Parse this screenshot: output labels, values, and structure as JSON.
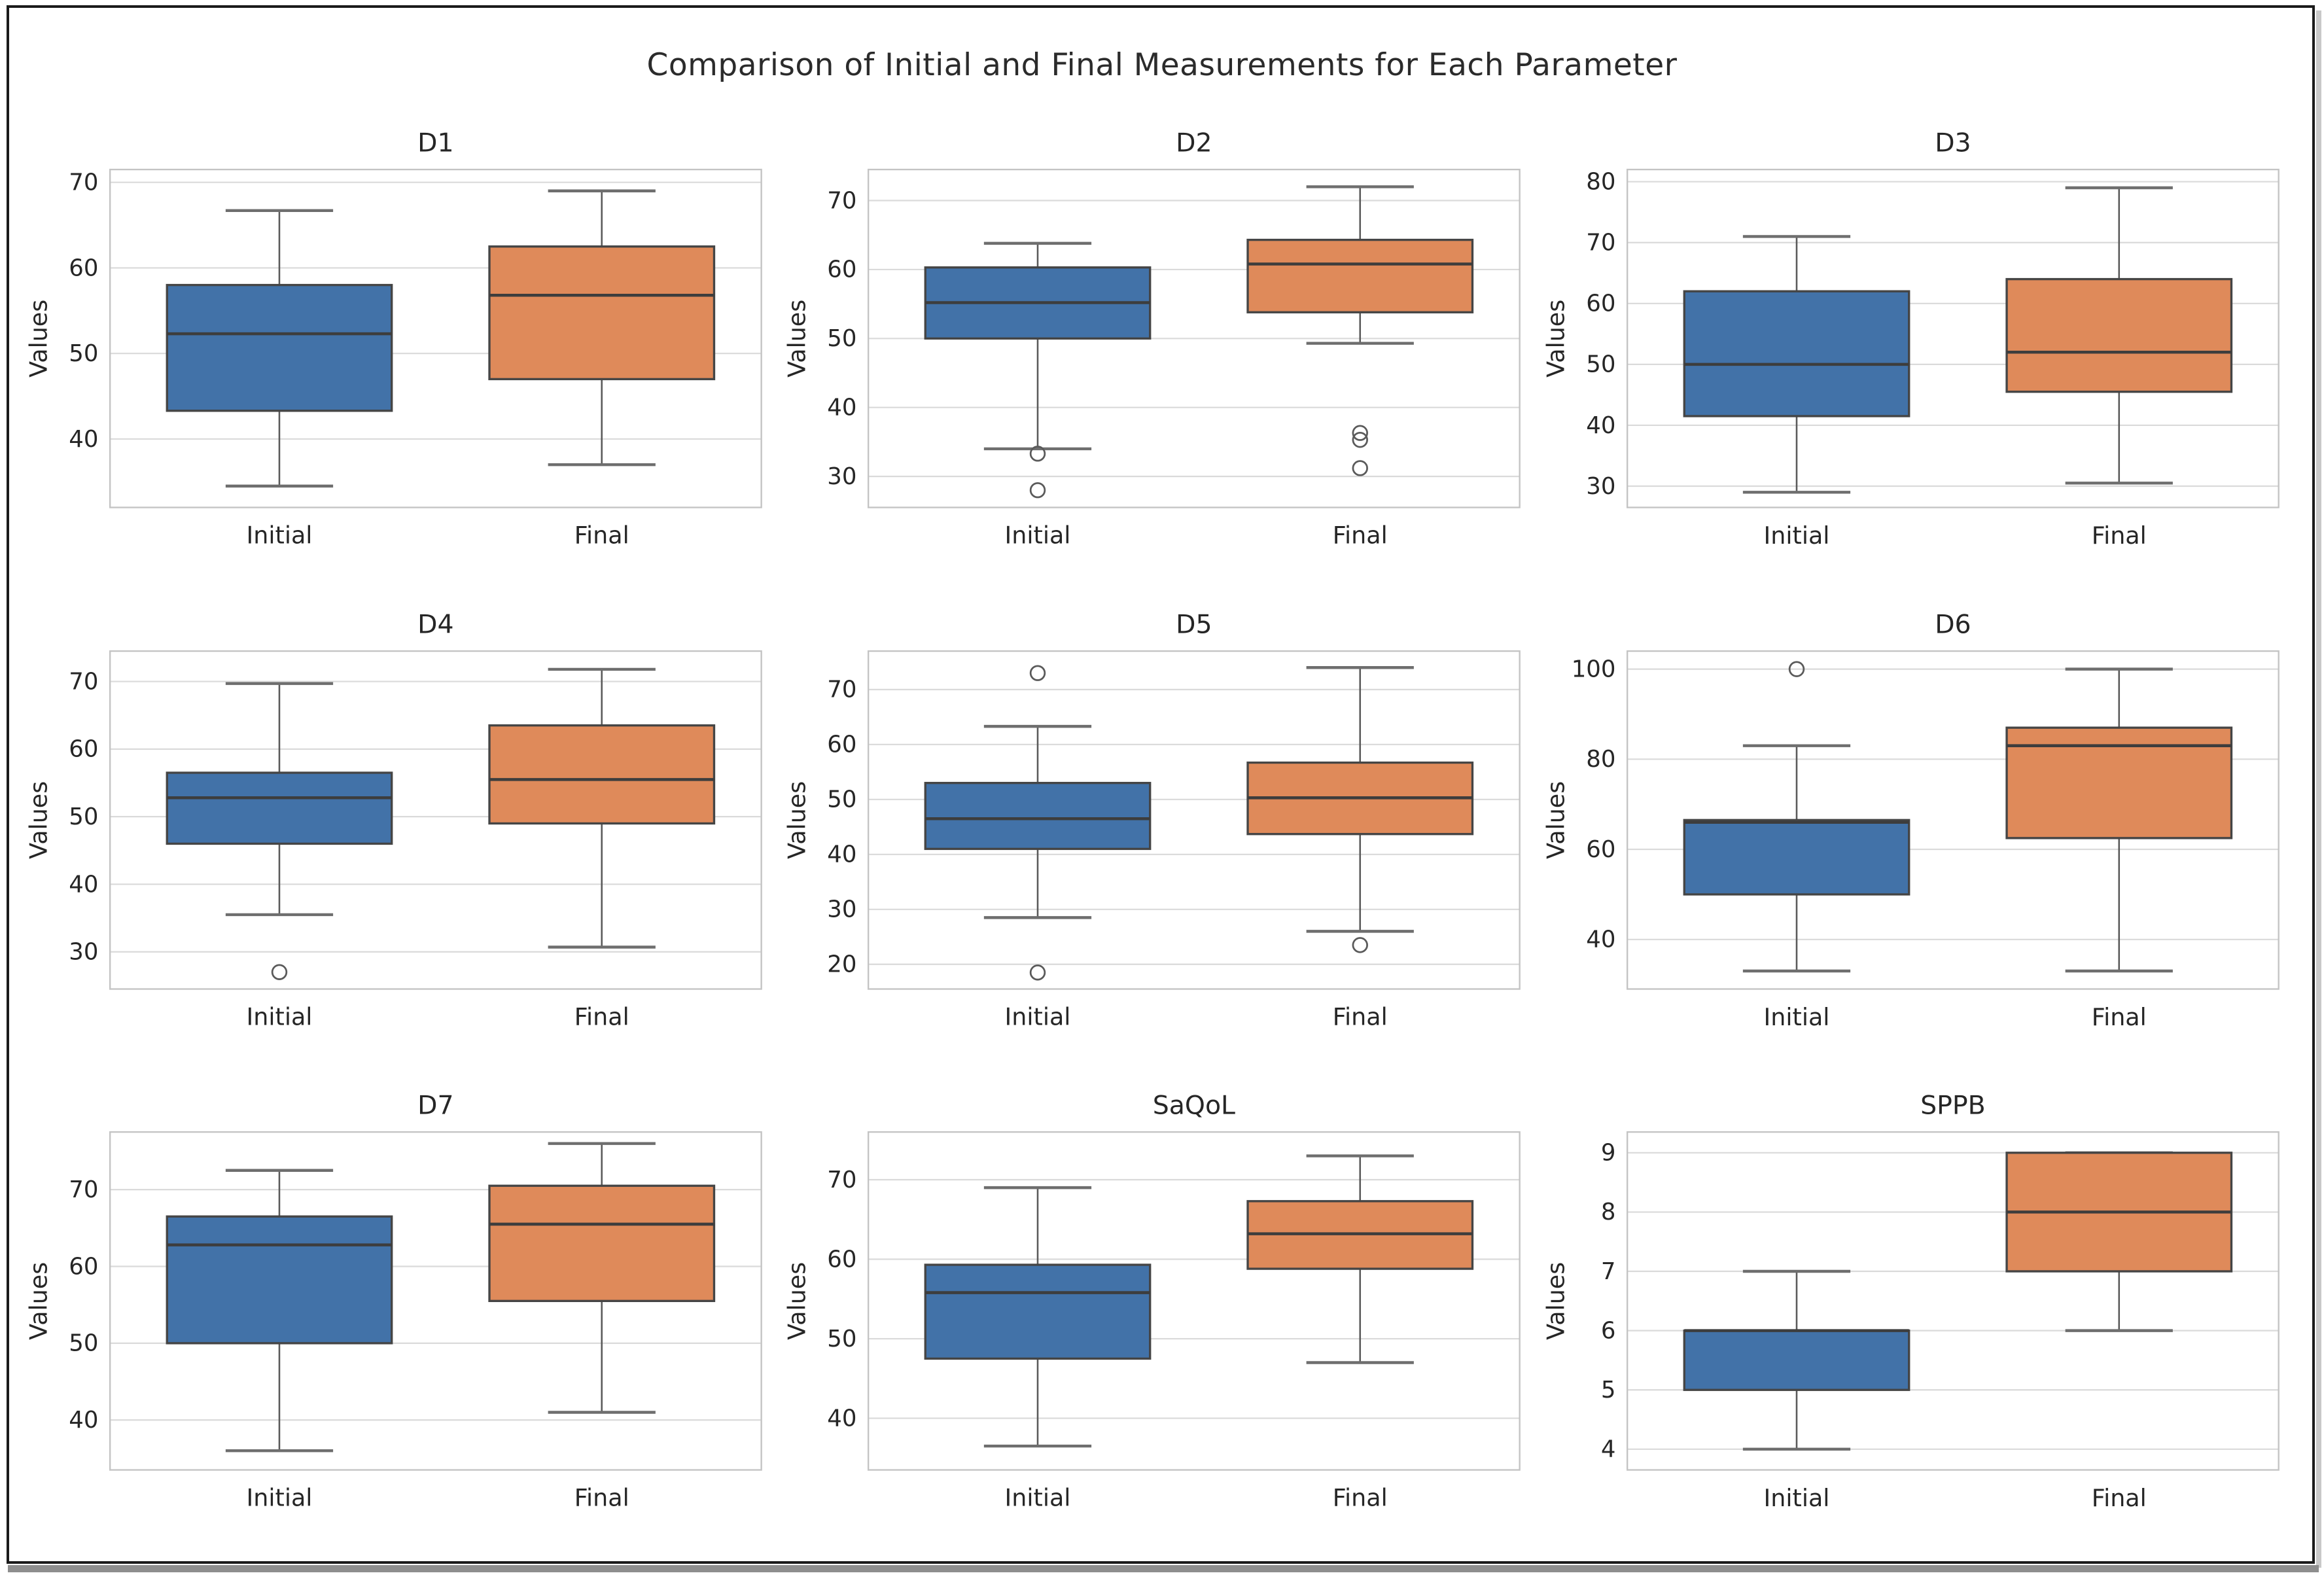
{
  "suptitle": "Comparison of Initial and Final Measurements for Each Parameter",
  "shared": {
    "ylabel": "Values",
    "categories": [
      "Initial",
      "Final"
    ]
  },
  "colors": {
    "initial_box_fill": "#4272a8",
    "final_box_fill": "#df8a5a",
    "box_edge": "#454545",
    "median_line": "#3d3d3d",
    "whisker": "#5a5a5a",
    "cap": "#6e6e6e",
    "outlier_stroke": "#5a5a5a",
    "gridline": "#dadada",
    "spine": "#c4c4c4",
    "text": "#262626",
    "frame_border": "#1b1b1b",
    "shadow": "#8e8e8e",
    "background": "#ffffff"
  },
  "chart_data": [
    {
      "type": "box",
      "title": "D1",
      "ylabel": "Values",
      "categories": [
        "Initial",
        "Final"
      ],
      "yticks": [
        40,
        50,
        60,
        70
      ],
      "ylim": [
        32.0,
        71.5
      ],
      "series": [
        {
          "name": "Initial",
          "low": 34.5,
          "q1": 43.3,
          "median": 52.3,
          "q3": 58.0,
          "high": 66.7,
          "outliers": []
        },
        {
          "name": "Final",
          "low": 37.0,
          "q1": 47.0,
          "median": 56.8,
          "q3": 62.5,
          "high": 69.0,
          "outliers": []
        }
      ]
    },
    {
      "type": "box",
      "title": "D2",
      "ylabel": "Values",
      "categories": [
        "Initial",
        "Final"
      ],
      "yticks": [
        30,
        40,
        50,
        60,
        70
      ],
      "ylim": [
        25.5,
        74.5
      ],
      "series": [
        {
          "name": "Initial",
          "low": 34.0,
          "q1": 50.0,
          "median": 55.2,
          "q3": 60.3,
          "high": 63.8,
          "outliers": [
            33.3,
            28.0
          ]
        },
        {
          "name": "Final",
          "low": 49.3,
          "q1": 53.8,
          "median": 60.8,
          "q3": 64.3,
          "high": 72.0,
          "outliers": [
            36.3,
            35.3,
            31.2
          ]
        }
      ]
    },
    {
      "type": "box",
      "title": "D3",
      "ylabel": "Values",
      "categories": [
        "Initial",
        "Final"
      ],
      "yticks": [
        30,
        40,
        50,
        60,
        70,
        80
      ],
      "ylim": [
        26.5,
        82.0
      ],
      "series": [
        {
          "name": "Initial",
          "low": 29.0,
          "q1": 41.5,
          "median": 50.0,
          "q3": 62.0,
          "high": 71.0,
          "outliers": []
        },
        {
          "name": "Final",
          "low": 30.5,
          "q1": 45.5,
          "median": 52.0,
          "q3": 64.0,
          "high": 79.0,
          "outliers": []
        }
      ]
    },
    {
      "type": "box",
      "title": "D4",
      "ylabel": "Values",
      "categories": [
        "Initial",
        "Final"
      ],
      "yticks": [
        30,
        40,
        50,
        60,
        70
      ],
      "ylim": [
        24.5,
        74.5
      ],
      "series": [
        {
          "name": "Initial",
          "low": 35.5,
          "q1": 46.0,
          "median": 52.8,
          "q3": 56.5,
          "high": 69.7,
          "outliers": [
            27.0
          ]
        },
        {
          "name": "Final",
          "low": 30.7,
          "q1": 49.0,
          "median": 55.5,
          "q3": 63.5,
          "high": 71.8,
          "outliers": []
        }
      ]
    },
    {
      "type": "box",
      "title": "D5",
      "ylabel": "Values",
      "categories": [
        "Initial",
        "Final"
      ],
      "yticks": [
        20,
        30,
        40,
        50,
        60,
        70
      ],
      "ylim": [
        15.5,
        77.0
      ],
      "series": [
        {
          "name": "Initial",
          "low": 28.5,
          "q1": 41.0,
          "median": 46.5,
          "q3": 53.0,
          "high": 63.3,
          "outliers": [
            73.0,
            18.5
          ]
        },
        {
          "name": "Final",
          "low": 26.0,
          "q1": 43.7,
          "median": 50.3,
          "q3": 56.7,
          "high": 74.0,
          "outliers": [
            23.5
          ]
        }
      ]
    },
    {
      "type": "box",
      "title": "D6",
      "ylabel": "Values",
      "categories": [
        "Initial",
        "Final"
      ],
      "yticks": [
        40,
        60,
        80,
        100
      ],
      "ylim": [
        29.0,
        104.0
      ],
      "series": [
        {
          "name": "Initial",
          "low": 33.0,
          "q1": 50.0,
          "median": 66.0,
          "q3": 66.5,
          "high": 83.0,
          "outliers": [
            100.0
          ]
        },
        {
          "name": "Final",
          "low": 33.0,
          "q1": 62.5,
          "median": 83.0,
          "q3": 87.0,
          "high": 100.0,
          "outliers": []
        }
      ]
    },
    {
      "type": "box",
      "title": "D7",
      "ylabel": "Values",
      "categories": [
        "Initial",
        "Final"
      ],
      "yticks": [
        40,
        50,
        60,
        70
      ],
      "ylim": [
        33.5,
        77.5
      ],
      "series": [
        {
          "name": "Initial",
          "low": 36.0,
          "q1": 50.0,
          "median": 62.8,
          "q3": 66.5,
          "high": 72.5,
          "outliers": []
        },
        {
          "name": "Final",
          "low": 41.0,
          "q1": 55.5,
          "median": 65.5,
          "q3": 70.5,
          "high": 76.0,
          "outliers": []
        }
      ]
    },
    {
      "type": "box",
      "title": "SaQoL",
      "ylabel": "Values",
      "categories": [
        "Initial",
        "Final"
      ],
      "yticks": [
        40,
        50,
        60,
        70
      ],
      "ylim": [
        33.5,
        76.0
      ],
      "series": [
        {
          "name": "Initial",
          "low": 36.5,
          "q1": 47.5,
          "median": 55.8,
          "q3": 59.3,
          "high": 69.0,
          "outliers": []
        },
        {
          "name": "Final",
          "low": 47.0,
          "q1": 58.8,
          "median": 63.2,
          "q3": 67.3,
          "high": 73.0,
          "outliers": []
        }
      ]
    },
    {
      "type": "box",
      "title": "SPPB",
      "ylabel": "Values",
      "categories": [
        "Initial",
        "Final"
      ],
      "yticks": [
        4,
        5,
        6,
        7,
        8,
        9
      ],
      "ylim": [
        3.65,
        9.35
      ],
      "series": [
        {
          "name": "Initial",
          "low": 4.0,
          "q1": 5.0,
          "median": 6.0,
          "q3": 6.0,
          "high": 7.0,
          "outliers": []
        },
        {
          "name": "Final",
          "low": 6.0,
          "q1": 7.0,
          "median": 8.0,
          "q3": 9.0,
          "high": 9.0,
          "outliers": []
        }
      ]
    }
  ]
}
